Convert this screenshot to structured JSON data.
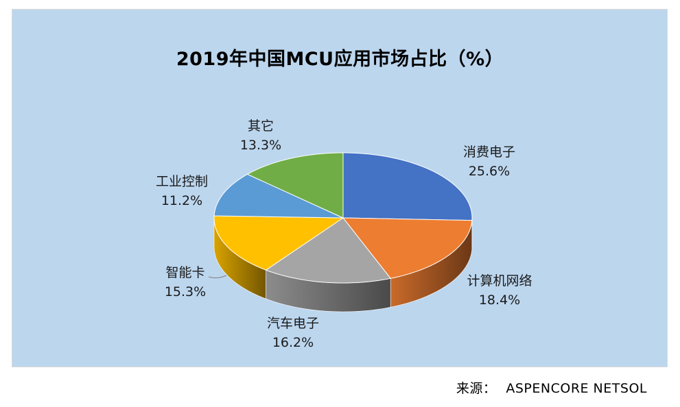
{
  "chart_data": {
    "type": "pie",
    "title": "2019年中国MCU应用市场占比（%）",
    "slices": [
      {
        "label": "消费电子",
        "value": 25.6,
        "display": "25.6%",
        "color": "#4472c4"
      },
      {
        "label": "计算机网络",
        "value": 18.4,
        "display": "18.4%",
        "color": "#ed7d31"
      },
      {
        "label": "汽车电子",
        "value": 16.2,
        "display": "16.2%",
        "color": "#a5a5a5"
      },
      {
        "label": "智能卡",
        "value": 15.3,
        "display": "15.3%",
        "color": "#ffc000"
      },
      {
        "label": "工业控制",
        "value": 11.2,
        "display": "11.2%",
        "color": "#5b9bd5"
      },
      {
        "label": "其它",
        "value": 13.3,
        "display": "13.3%",
        "color": "#70ad47"
      }
    ],
    "style": "3d-pie",
    "legend": "none"
  },
  "source": {
    "label": "来源：",
    "value": "ASPENCORE NETSOL"
  }
}
